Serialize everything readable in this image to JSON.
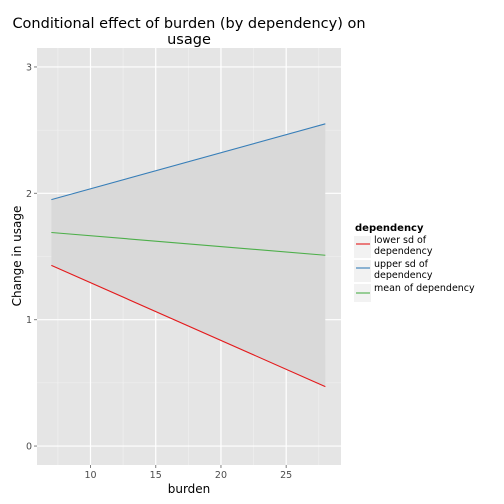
{
  "chart_data": {
    "type": "line",
    "title_lines": [
      "Conditional effect of burden (by dependency) on",
      "usage"
    ],
    "xlabel": "burden",
    "ylabel": "Change in usage",
    "xlim": [
      5.9,
      29.2
    ],
    "ylim": [
      -0.15,
      3.15
    ],
    "xticks": [
      10,
      15,
      20,
      25
    ],
    "yticks": [
      0,
      1,
      2,
      3
    ],
    "grid": true,
    "legend_title": "dependency",
    "legend_position": "right",
    "ribbon": {
      "x": [
        7,
        28
      ],
      "ymin": [
        1.43,
        0.47
      ],
      "ymax": [
        1.95,
        2.55
      ],
      "color": "#d9d9d9"
    },
    "series": [
      {
        "name": "lower sd of dependency",
        "label_lines": [
          "lower sd of",
          "dependency"
        ],
        "color": "#e41a1c",
        "x": [
          7,
          28
        ],
        "y": [
          1.43,
          0.47
        ]
      },
      {
        "name": "upper sd of dependency",
        "label_lines": [
          "upper sd of",
          "dependency"
        ],
        "color": "#377eb8",
        "x": [
          7,
          28
        ],
        "y": [
          1.95,
          2.55
        ]
      },
      {
        "name": "mean of dependency",
        "label_lines": [
          "mean of dependency"
        ],
        "color": "#4daf4a",
        "x": [
          7,
          28
        ],
        "y": [
          1.69,
          1.51
        ]
      }
    ]
  }
}
